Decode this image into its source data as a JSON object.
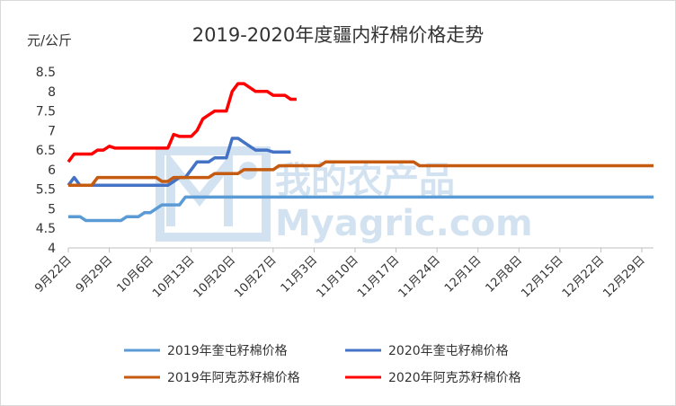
{
  "chart_data": {
    "type": "line",
    "title": "2019-2020年度疆内籽棉价格走势",
    "ylabel": "元/公斤",
    "ylim": [
      4,
      8.5
    ],
    "yticks": [
      4,
      4.5,
      5,
      5.5,
      6,
      6.5,
      7,
      7.5,
      8,
      8.5
    ],
    "xlim": [
      0,
      100
    ],
    "x_ticks": [
      {
        "day": 0,
        "label": "9月22日"
      },
      {
        "day": 7,
        "label": "9月29日"
      },
      {
        "day": 14,
        "label": "10月6日"
      },
      {
        "day": 21,
        "label": "10月13日"
      },
      {
        "day": 28,
        "label": "10月20日"
      },
      {
        "day": 35,
        "label": "10月27日"
      },
      {
        "day": 42,
        "label": "11月3日"
      },
      {
        "day": 49,
        "label": "11月10日"
      },
      {
        "day": 56,
        "label": "11月17日"
      },
      {
        "day": 63,
        "label": "11月24日"
      },
      {
        "day": 70,
        "label": "12月1日"
      },
      {
        "day": 77,
        "label": "12月8日"
      },
      {
        "day": 84,
        "label": "12月15日"
      },
      {
        "day": 91,
        "label": "12月22日"
      },
      {
        "day": 98,
        "label": "12月29日"
      }
    ],
    "grid": false,
    "legend_position": "bottom",
    "series": [
      {
        "name": "2019年奎屯籽棉价格",
        "color": "#5b9bd5",
        "points": [
          [
            0,
            4.8
          ],
          [
            2,
            4.8
          ],
          [
            3,
            4.7
          ],
          [
            9,
            4.7
          ],
          [
            10,
            4.8
          ],
          [
            12,
            4.8
          ],
          [
            13,
            4.9
          ],
          [
            14,
            4.9
          ],
          [
            16,
            5.1
          ],
          [
            19,
            5.1
          ],
          [
            20,
            5.3
          ],
          [
            100,
            5.3
          ]
        ]
      },
      {
        "name": "2020年奎屯籽棉价格",
        "color": "#4472c4",
        "points": [
          [
            0,
            5.6
          ],
          [
            1,
            5.8
          ],
          [
            2,
            5.6
          ],
          [
            16,
            5.6
          ],
          [
            17,
            5.6
          ],
          [
            18,
            5.7
          ],
          [
            19,
            5.8
          ],
          [
            20,
            5.8
          ],
          [
            21,
            6.0
          ],
          [
            22,
            6.2
          ],
          [
            24,
            6.2
          ],
          [
            25,
            6.3
          ],
          [
            26,
            6.3
          ],
          [
            27,
            6.3
          ],
          [
            28,
            6.8
          ],
          [
            29,
            6.8
          ],
          [
            30,
            6.7
          ],
          [
            31,
            6.6
          ],
          [
            32,
            6.5
          ],
          [
            34,
            6.5
          ],
          [
            35,
            6.45
          ],
          [
            38,
            6.45
          ]
        ]
      },
      {
        "name": "2019年阿克苏籽棉价格",
        "color": "#c55a11",
        "points": [
          [
            0,
            5.6
          ],
          [
            4,
            5.6
          ],
          [
            5,
            5.8
          ],
          [
            15,
            5.8
          ],
          [
            16,
            5.7
          ],
          [
            17,
            5.7
          ],
          [
            18,
            5.8
          ],
          [
            24,
            5.8
          ],
          [
            25,
            5.9
          ],
          [
            29,
            5.9
          ],
          [
            30,
            6.0
          ],
          [
            35,
            6.0
          ],
          [
            36,
            6.1
          ],
          [
            43,
            6.1
          ],
          [
            44,
            6.2
          ],
          [
            59,
            6.2
          ],
          [
            60,
            6.1
          ],
          [
            100,
            6.1
          ]
        ]
      },
      {
        "name": "2020年阿克苏籽棉价格",
        "color": "#ff0000",
        "points": [
          [
            0,
            6.2
          ],
          [
            1,
            6.4
          ],
          [
            4,
            6.4
          ],
          [
            5,
            6.5
          ],
          [
            6,
            6.5
          ],
          [
            7,
            6.6
          ],
          [
            8,
            6.55
          ],
          [
            17,
            6.55
          ],
          [
            18,
            6.9
          ],
          [
            19,
            6.85
          ],
          [
            20,
            6.85
          ],
          [
            21,
            6.85
          ],
          [
            22,
            7.0
          ],
          [
            23,
            7.3
          ],
          [
            24,
            7.4
          ],
          [
            25,
            7.5
          ],
          [
            27,
            7.5
          ],
          [
            28,
            8.0
          ],
          [
            29,
            8.2
          ],
          [
            30,
            8.2
          ],
          [
            31,
            8.1
          ],
          [
            32,
            8.0
          ],
          [
            34,
            8.0
          ],
          [
            35,
            7.9
          ],
          [
            37,
            7.9
          ],
          [
            38,
            7.8
          ],
          [
            39,
            7.8
          ]
        ]
      }
    ]
  },
  "watermark": {
    "logo_text": "我的农产品",
    "site_text": "Myagric.com",
    "color": "#9fc0e0"
  }
}
